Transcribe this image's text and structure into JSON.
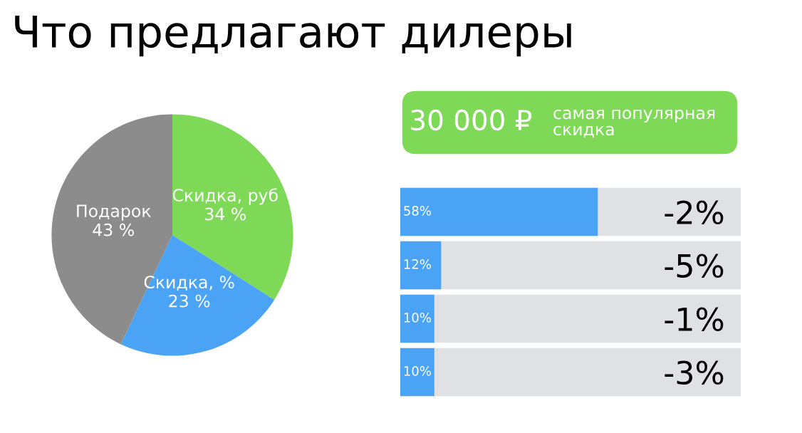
{
  "chart_data": [
    {
      "type": "pie",
      "title": "Что предлагают дилеры",
      "categories": [
        "Скидка, руб",
        "Скидка, %",
        "Подарок"
      ],
      "values": [
        34,
        23,
        43
      ],
      "value_labels": [
        "34 %",
        "23 %",
        "43 %"
      ],
      "colors": [
        "#7ed957",
        "#4aa3f5",
        "#8c8c8c"
      ]
    },
    {
      "type": "other",
      "title": "30 000 ₽",
      "subtitle": "самая популярная скидка",
      "color": "#7ed957"
    },
    {
      "type": "bar",
      "orientation": "horizontal",
      "categories": [
        "-2%",
        "-5%",
        "-1%",
        "-3%"
      ],
      "values": [
        58,
        12,
        10,
        10
      ],
      "value_labels": [
        "58%",
        "12%",
        "10%",
        "10%"
      ],
      "color": "#4aa3f5",
      "xlim": [
        0,
        100
      ],
      "tick_labels": "y"
    }
  ]
}
